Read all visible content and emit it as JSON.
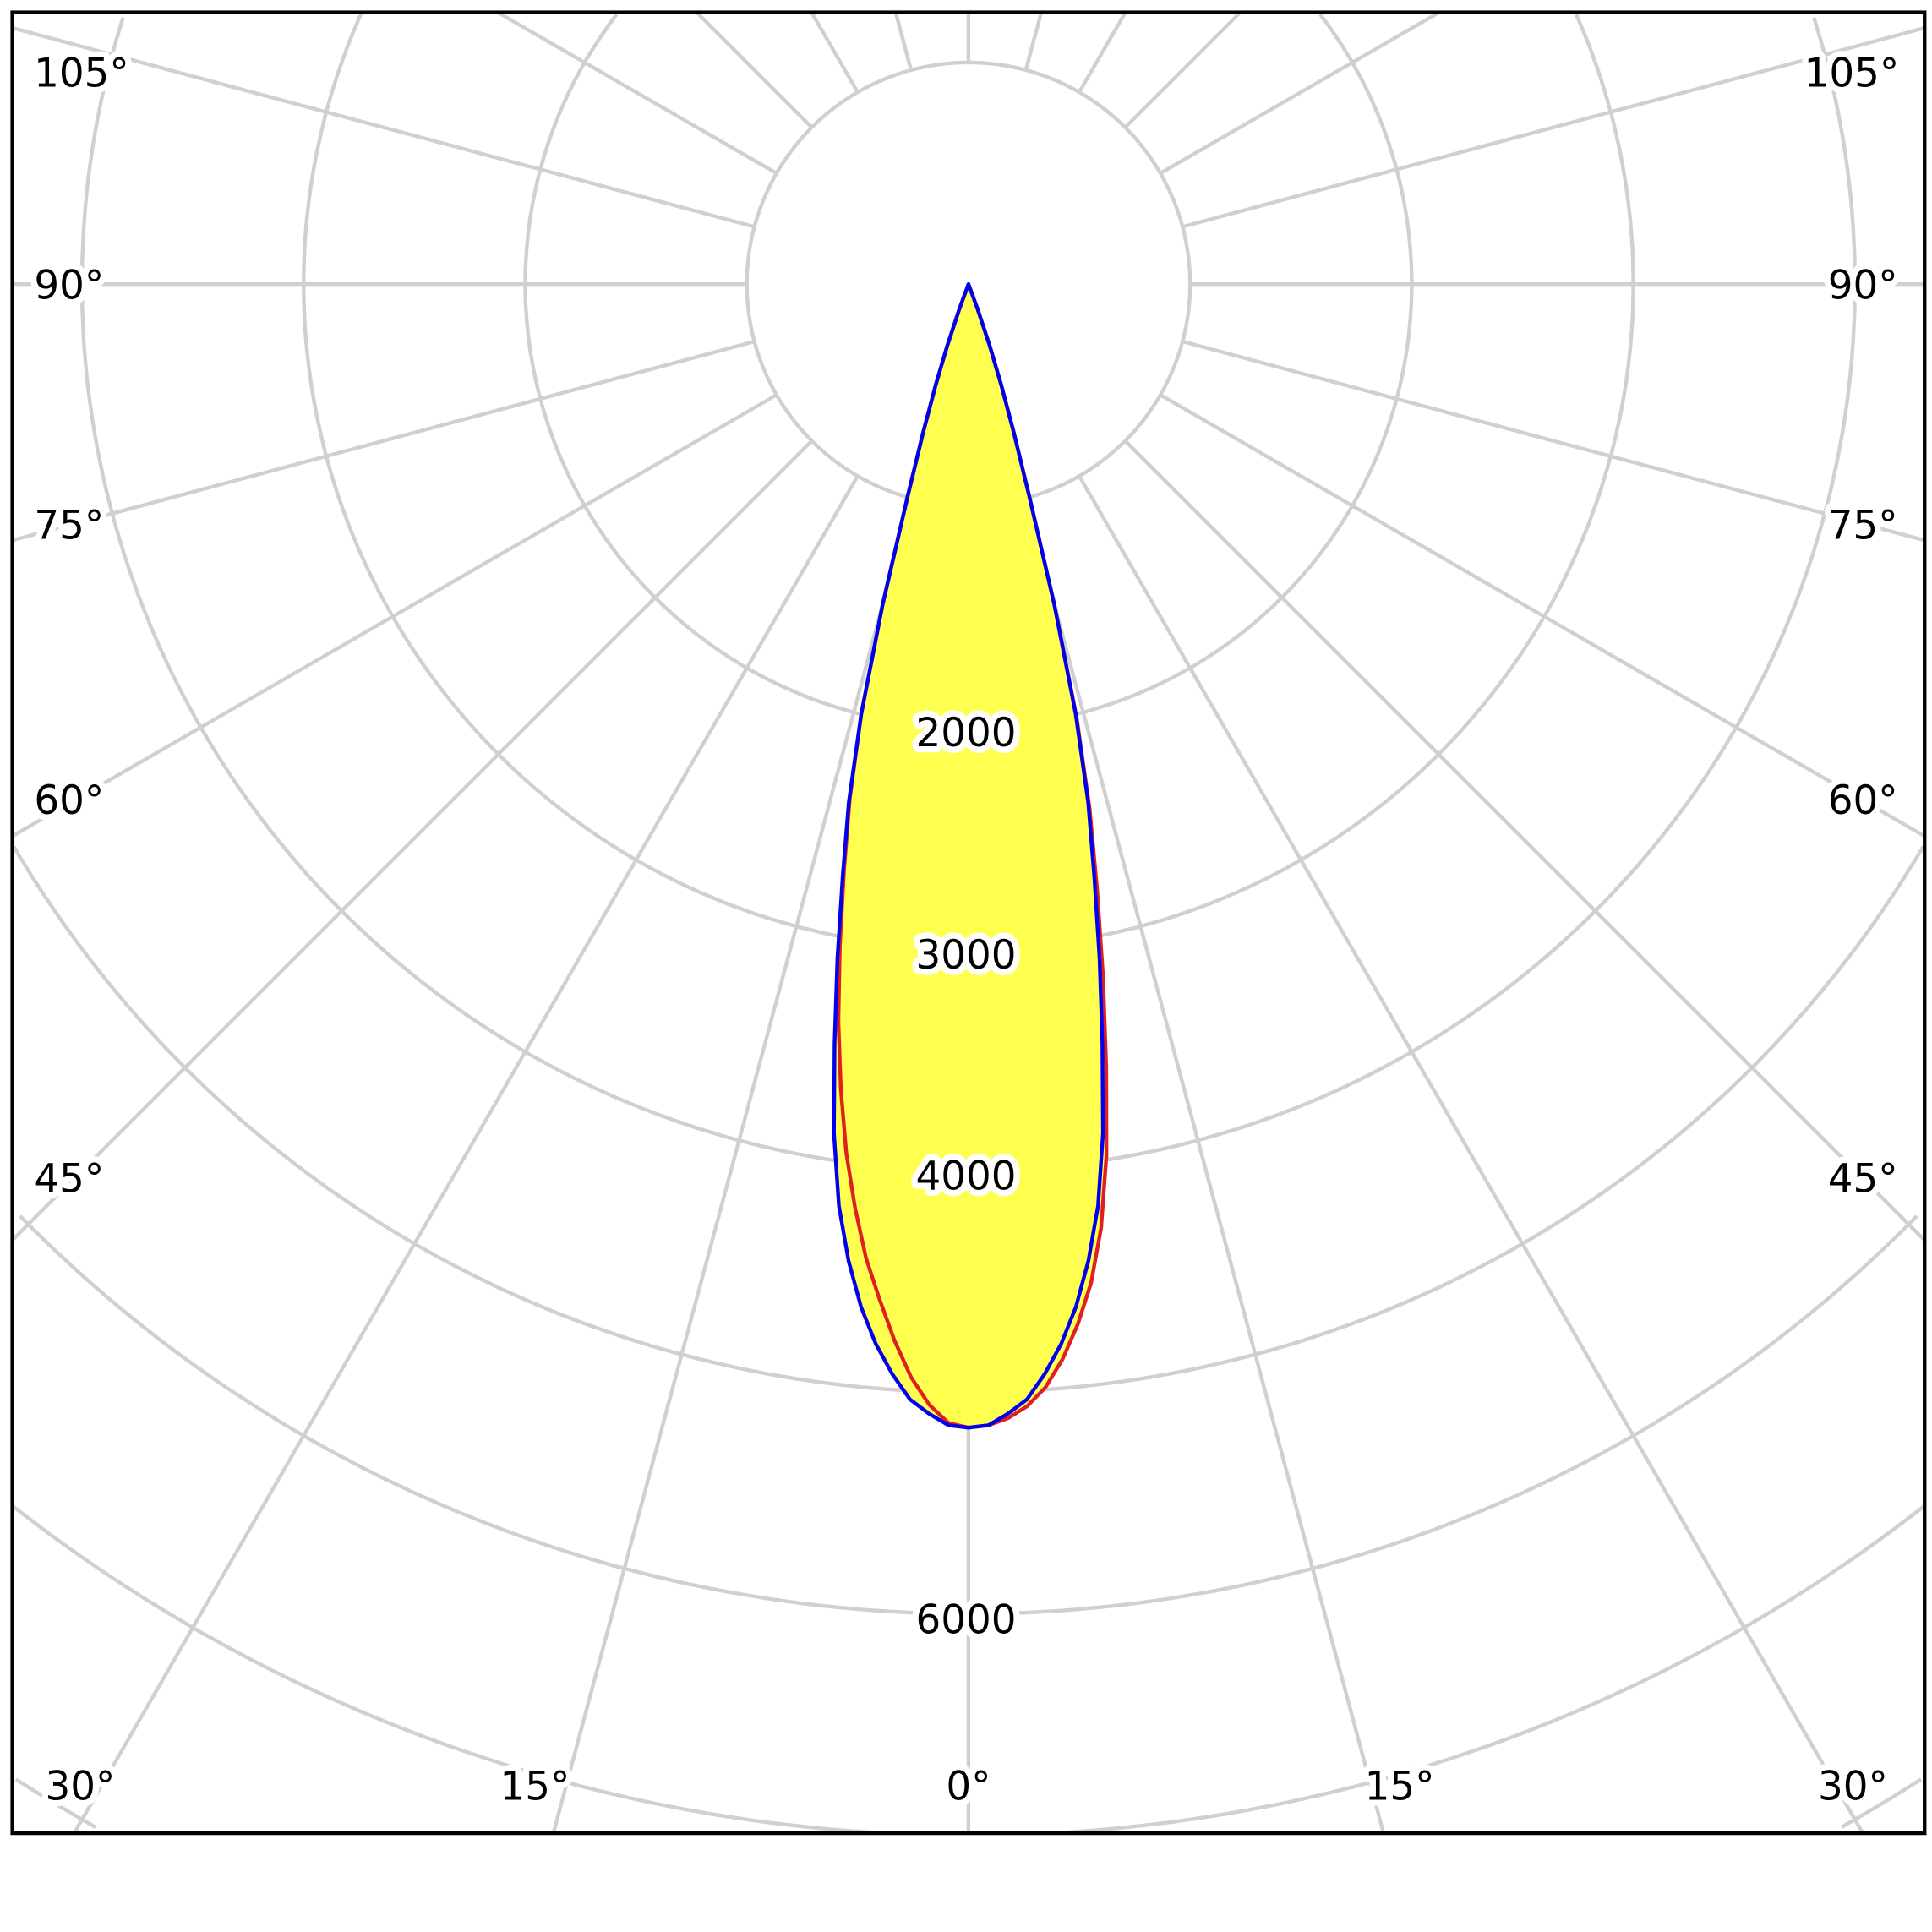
{
  "chart_data": {
    "type": "polar",
    "title": "",
    "radial_unit": "cd",
    "radial_rings": [
      1000,
      2000,
      3000,
      4000,
      5000,
      6000,
      7000,
      8000
    ],
    "radial_tick_labels": [
      "2000",
      "3000",
      "4000",
      "6000"
    ],
    "angle_step_deg": 15,
    "angle_tick_labels": {
      "bottom": [
        "30°",
        "15°",
        "0°",
        "15°",
        "30°"
      ],
      "left": [
        "105°",
        "90°",
        "75°",
        "60°",
        "45°"
      ],
      "right": [
        "105°",
        "90°",
        "75°",
        "60°",
        "45°"
      ]
    },
    "grid": true,
    "fill_color": "#ffff50",
    "series": [
      {
        "color": "#e02020",
        "angles": [
          0,
          1,
          2,
          3,
          4,
          5,
          6,
          7,
          8,
          9,
          10,
          11,
          12,
          13,
          14,
          15,
          16,
          17,
          18,
          19,
          20,
          21
        ],
        "values_left": [
          5160,
          5140,
          5060,
          4940,
          4780,
          4600,
          4420,
          4200,
          3960,
          3680,
          3380,
          3040,
          2700,
          2380,
          2000,
          1500,
          1000,
          700,
          480,
          300,
          120,
          0
        ],
        "values_right": [
          5160,
          5150,
          5120,
          5070,
          4990,
          4870,
          4720,
          4540,
          4300,
          3980,
          3580,
          3180,
          2790,
          2430,
          2020,
          1500,
          1000,
          700,
          480,
          300,
          120,
          0
        ]
      },
      {
        "color": "#0000ee",
        "angles": [
          0,
          1,
          2,
          3,
          4,
          5,
          6,
          7,
          8,
          9,
          10,
          11,
          12,
          13,
          14,
          15,
          16,
          17,
          18,
          19,
          20,
          21
        ],
        "values_left": [
          5160,
          5150,
          5100,
          5040,
          4930,
          4800,
          4640,
          4440,
          4200,
          3880,
          3480,
          3100,
          2730,
          2400,
          2000,
          1500,
          1000,
          700,
          480,
          300,
          120,
          0
        ],
        "values_right": [
          5160,
          5150,
          5100,
          5040,
          4930,
          4800,
          4640,
          4440,
          4200,
          3880,
          3480,
          3100,
          2730,
          2400,
          2000,
          1500,
          1000,
          700,
          480,
          300,
          120,
          0
        ]
      }
    ]
  }
}
